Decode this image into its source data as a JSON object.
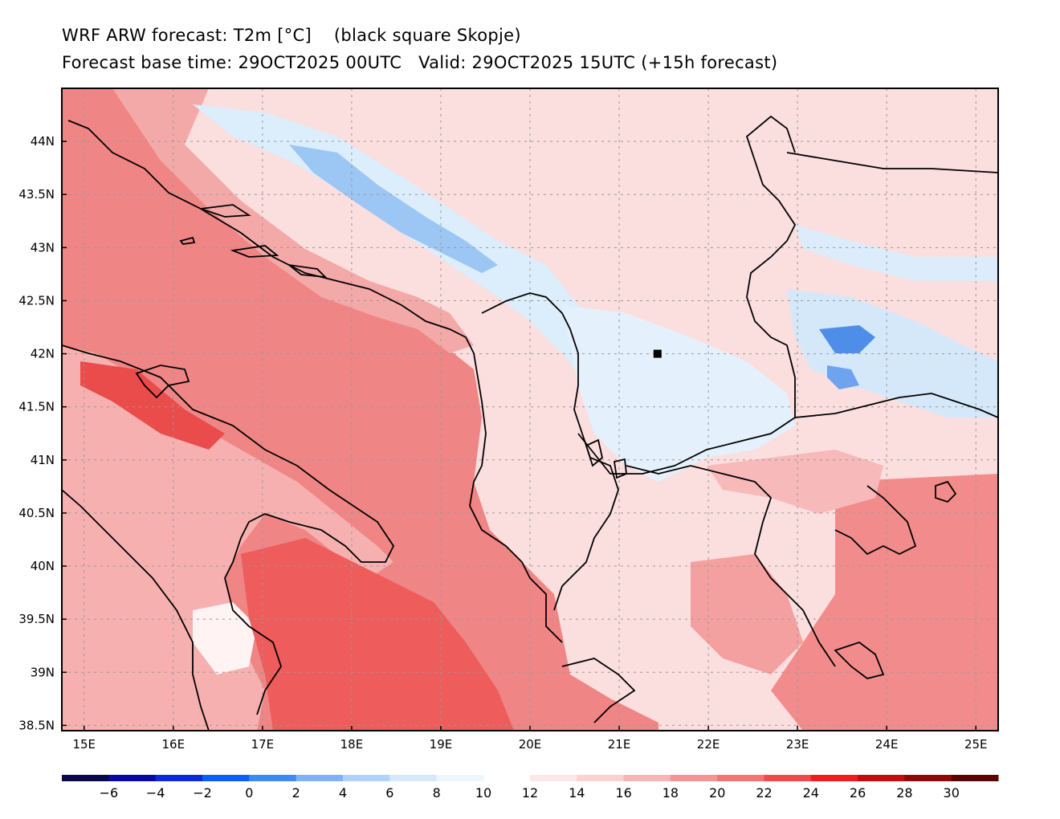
{
  "header": {
    "line1": "WRF ARW forecast: T2m [°C]    (black square Skopje)",
    "line2": "Forecast base time: 29OCT2025 00UTC   Valid: 29OCT2025 15UTC (+15h forecast)"
  },
  "map": {
    "marker_label": "Skopje",
    "marker_lat": 42.0,
    "marker_lon": 21.43,
    "lat_range": [
      38.45,
      44.5
    ],
    "lon_range": [
      14.75,
      25.25
    ],
    "lat_labels": [
      "44N",
      "43.5N",
      "43N",
      "42.5N",
      "42N",
      "41.5N",
      "41N",
      "40.5N",
      "40N",
      "39.5N",
      "39N",
      "38.5N"
    ],
    "lat_values": [
      44,
      43.5,
      43,
      42.5,
      42,
      41.5,
      41,
      40.5,
      40,
      39.5,
      39,
      38.5
    ],
    "lon_labels": [
      "15E",
      "16E",
      "17E",
      "18E",
      "19E",
      "20E",
      "21E",
      "22E",
      "23E",
      "24E",
      "25E"
    ],
    "lon_values": [
      15,
      16,
      17,
      18,
      19,
      20,
      21,
      22,
      23,
      24,
      25
    ],
    "sea_color": "#f08080",
    "warm_color": "#f4a3a3",
    "land_color": "#fbd9d9",
    "cold_color": "#d8ecfb"
  },
  "colorbar": {
    "labels": [
      "−6",
      "−4",
      "−2",
      "0",
      "2",
      "4",
      "6",
      "8",
      "10",
      "12",
      "14",
      "16",
      "18",
      "20",
      "22",
      "24",
      "26",
      "28",
      "30"
    ],
    "colors": [
      "#08084a",
      "#0a0a9c",
      "#0b2bd8",
      "#0a5ff5",
      "#3c8bf5",
      "#7eb4f7",
      "#b0d3f9",
      "#d6e9fb",
      "#eef6fd",
      "#fce8e8",
      "#fad2d2",
      "#f7b5b5",
      "#f49494",
      "#f27474",
      "#ef4a4a",
      "#ee1d1d",
      "#c00e0e",
      "#8f0909",
      "#5a0404"
    ]
  }
}
